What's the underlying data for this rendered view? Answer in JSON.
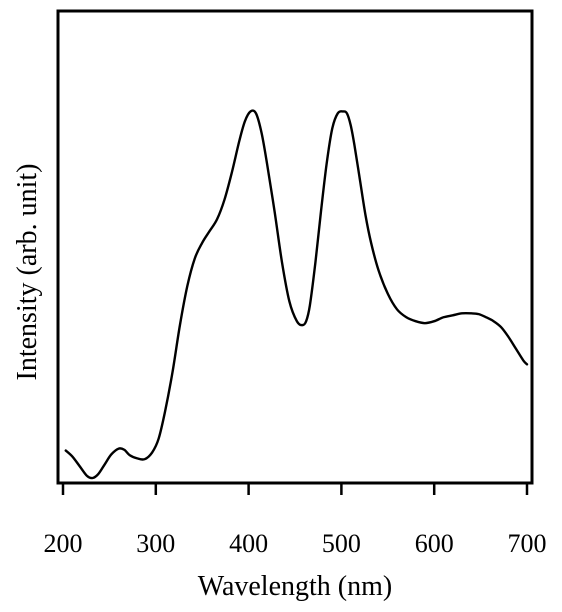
{
  "chart_data": {
    "type": "line",
    "title": "",
    "xlabel": "Wavelength (nm)",
    "ylabel": "Intensity (arb. unit)",
    "xlim": [
      200,
      700
    ],
    "ylim": [
      0,
      1
    ],
    "x_ticks": [
      200,
      300,
      400,
      500,
      600,
      700
    ],
    "x_tick_labels": [
      "200",
      "300",
      "400",
      "500",
      "600",
      "700"
    ],
    "y_ticks_shown": false,
    "grid": false,
    "legend": "none",
    "series": [
      {
        "color": "#000000",
        "x": [
          203,
          210,
          218,
          226,
          232,
          238,
          245,
          252,
          260,
          266,
          272,
          280,
          288,
          296,
          303,
          310,
          318,
          326,
          334,
          342,
          350,
          358,
          366,
          374,
          382,
          390,
          396,
          402,
          408,
          414,
          420,
          428,
          436,
          444,
          452,
          458,
          462,
          466,
          472,
          478,
          484,
          490,
          496,
          502,
          506,
          510,
          514,
          520,
          526,
          532,
          540,
          550,
          560,
          570,
          580,
          590,
          600,
          610,
          620,
          630,
          640,
          648,
          656,
          664,
          672,
          680,
          688,
          696,
          700
        ],
        "y": [
          0.07,
          0.055,
          0.03,
          0.005,
          0.0,
          0.01,
          0.035,
          0.06,
          0.075,
          0.072,
          0.058,
          0.05,
          0.048,
          0.065,
          0.1,
          0.17,
          0.27,
          0.39,
          0.49,
          0.56,
          0.6,
          0.63,
          0.66,
          0.71,
          0.78,
          0.86,
          0.91,
          0.935,
          0.93,
          0.88,
          0.8,
          0.68,
          0.55,
          0.45,
          0.4,
          0.39,
          0.4,
          0.44,
          0.55,
          0.68,
          0.8,
          0.89,
          0.93,
          0.935,
          0.93,
          0.9,
          0.85,
          0.76,
          0.67,
          0.6,
          0.53,
          0.47,
          0.43,
          0.41,
          0.4,
          0.395,
          0.4,
          0.41,
          0.415,
          0.42,
          0.42,
          0.418,
          0.41,
          0.4,
          0.385,
          0.36,
          0.33,
          0.3,
          0.29
        ]
      }
    ]
  }
}
